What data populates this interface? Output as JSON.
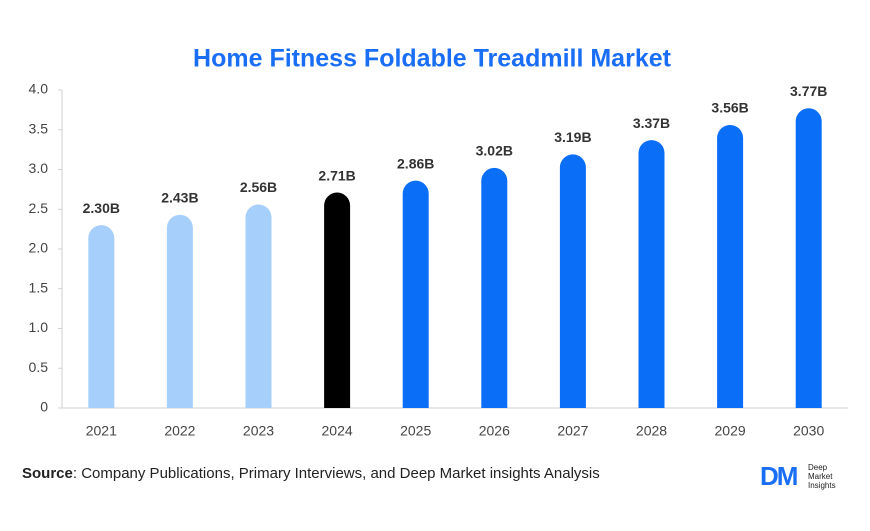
{
  "chart_data": {
    "type": "bar",
    "title": "Home Fitness Foldable Treadmill Market",
    "categories": [
      "2021",
      "2022",
      "2023",
      "2024",
      "2025",
      "2026",
      "2027",
      "2028",
      "2029",
      "2030"
    ],
    "values": [
      2.3,
      2.43,
      2.56,
      2.71,
      2.86,
      3.02,
      3.19,
      3.37,
      3.56,
      3.77
    ],
    "value_labels": [
      "2.30B",
      "2.43B",
      "2.56B",
      "2.71B",
      "2.86B",
      "3.02B",
      "3.19B",
      "3.37B",
      "3.56B",
      "3.77B"
    ],
    "colors": [
      "#a7cffb",
      "#a7cffb",
      "#a7cffb",
      "#000000",
      "#0b6ef6",
      "#0b6ef6",
      "#0b6ef6",
      "#0b6ef6",
      "#0b6ef6",
      "#0b6ef6"
    ],
    "ylim": [
      0,
      4
    ],
    "yticks": [
      0,
      {
        "value": 0.5,
        "label": "0.5"
      },
      {
        "value": 1,
        "label": "1.0"
      },
      {
        "value": 1.5,
        "label": "1.5"
      },
      {
        "value": 2,
        "label": "2.0"
      },
      {
        "value": 2.5,
        "label": "2.5"
      },
      {
        "value": 3,
        "label": "3.0"
      },
      {
        "value": 3.5,
        "label": "3.5"
      },
      {
        "value": 4,
        "label": "4.0"
      }
    ],
    "grid": false
  },
  "footer": {
    "source_label": "Source",
    "source_text": ": Company Publications, Primary Interviews, and Deep Market insights Analysis",
    "logo_mark": "DM",
    "logo_text": [
      "Deep",
      "Market",
      "Insights"
    ]
  }
}
